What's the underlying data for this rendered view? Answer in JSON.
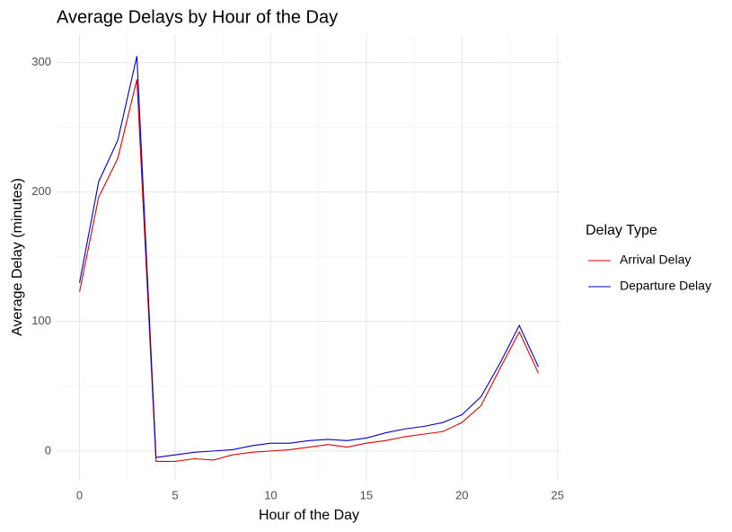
{
  "chart_data": {
    "type": "line",
    "title": "Average Delays by Hour of the Day",
    "x_label": "Hour of the Day",
    "y_label": "Average Delay (minutes)",
    "legend_title": "Delay Type",
    "legend_position": "right",
    "grid": true,
    "x": [
      0,
      1,
      2,
      3,
      4,
      5,
      6,
      7,
      8,
      9,
      10,
      11,
      12,
      13,
      14,
      15,
      16,
      17,
      18,
      19,
      20,
      21,
      22,
      23,
      24
    ],
    "series": [
      {
        "name": "Arrival Delay",
        "color": "#e00000",
        "values": [
          123,
          196,
          226,
          287,
          -8,
          -8,
          -6,
          -7,
          -3,
          -1,
          0,
          1,
          3,
          5,
          3,
          6,
          8,
          11,
          13,
          15,
          22,
          35,
          64,
          92,
          60
        ]
      },
      {
        "name": "Departure Delay",
        "color": "#0000c8",
        "values": [
          130,
          208,
          240,
          305,
          -5,
          -3,
          -1,
          0,
          1,
          4,
          6,
          6,
          8,
          9,
          8,
          10,
          14,
          17,
          19,
          22,
          28,
          42,
          68,
          97,
          65
        ]
      }
    ],
    "xlim": [
      -1.2,
      25.2
    ],
    "xticks": [
      0,
      5,
      10,
      15,
      20,
      25
    ],
    "ylim": [
      -23,
      322
    ],
    "yticks": [
      0,
      100,
      200,
      300
    ]
  }
}
